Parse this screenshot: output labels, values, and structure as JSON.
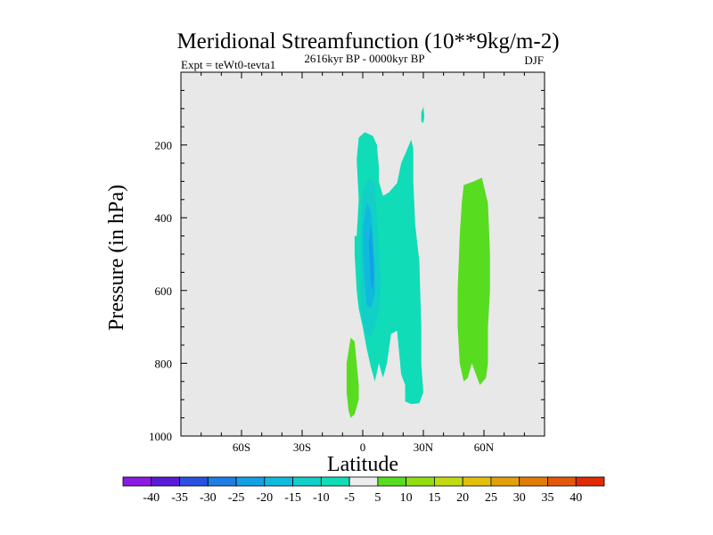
{
  "chart_data": {
    "type": "contour",
    "title": "Meridional Streamfunction (10**9kg/m-2)",
    "left_label": "Expt = teWt0-tevta1",
    "center_label": "2616kyr BP - 0000kyr BP",
    "right_label": "DJF",
    "xlabel": "Latitude",
    "ylabel": "Pressure (in hPa)",
    "xlim": [
      -90,
      90
    ],
    "ylim": [
      1000,
      0
    ],
    "x_ticks": [
      {
        "value": -60,
        "label": "60S"
      },
      {
        "value": -30,
        "label": "30S"
      },
      {
        "value": 0,
        "label": "0"
      },
      {
        "value": 30,
        "label": "30N"
      },
      {
        "value": 60,
        "label": "60N"
      }
    ],
    "y_ticks": [
      {
        "value": 200,
        "label": "200"
      },
      {
        "value": 400,
        "label": "400"
      },
      {
        "value": 600,
        "label": "600"
      },
      {
        "value": 800,
        "label": "800"
      },
      {
        "value": 1000,
        "label": "1000"
      }
    ],
    "colorbar": {
      "levels": [
        "-40",
        "-35",
        "-30",
        "-25",
        "-20",
        "-15",
        "-10",
        "-5",
        "5",
        "10",
        "15",
        "20",
        "25",
        "30",
        "35",
        "40"
      ],
      "colors": [
        "#8c1ae0",
        "#5a1ad8",
        "#2a52e0",
        "#1e7ee6",
        "#14a0e4",
        "#0fbade",
        "#12cfc8",
        "#10dcb8",
        "#ececec",
        "#58dc20",
        "#92dc14",
        "#c0dc10",
        "#e0c00c",
        "#e2a00a",
        "#e27c08",
        "#e25808",
        "#e02a02"
      ]
    },
    "regions": [
      {
        "name": "contour-region-tropics-neg5",
        "color": "#10dcb8",
        "points": [
          [
            -3,
            450
          ],
          [
            -2,
            350
          ],
          [
            -3,
            240
          ],
          [
            -2,
            180
          ],
          [
            1,
            165
          ],
          [
            5,
            175
          ],
          [
            7,
            200
          ],
          [
            8,
            260
          ],
          [
            8,
            300
          ],
          [
            10,
            340
          ],
          [
            13,
            330
          ],
          [
            17,
            305
          ],
          [
            19,
            250
          ],
          [
            21,
            225
          ],
          [
            24,
            185
          ],
          [
            25,
            210
          ],
          [
            25,
            300
          ],
          [
            26,
            420
          ],
          [
            28,
            520
          ],
          [
            29,
            700
          ],
          [
            29,
            800
          ],
          [
            30,
            880
          ],
          [
            28,
            910
          ],
          [
            24,
            912
          ],
          [
            21,
            905
          ],
          [
            21,
            860
          ],
          [
            19,
            830
          ],
          [
            17,
            710
          ],
          [
            14,
            720
          ],
          [
            12,
            800
          ],
          [
            10,
            840
          ],
          [
            8,
            800
          ],
          [
            6,
            850
          ],
          [
            4,
            810
          ],
          [
            2,
            760
          ],
          [
            0,
            700
          ],
          [
            -2,
            650
          ],
          [
            -3,
            600
          ],
          [
            -4,
            500
          ],
          [
            -4,
            450
          ]
        ]
      },
      {
        "name": "contour-region-tropics-neg10",
        "color": "#12cfc8",
        "points": [
          [
            -1,
            450
          ],
          [
            0,
            330
          ],
          [
            3,
            290
          ],
          [
            6,
            310
          ],
          [
            7,
            400
          ],
          [
            8,
            500
          ],
          [
            9,
            580
          ],
          [
            8,
            650
          ],
          [
            6,
            700
          ],
          [
            4,
            730
          ],
          [
            1,
            710
          ],
          [
            -1,
            640
          ],
          [
            -1,
            550
          ]
        ]
      },
      {
        "name": "contour-region-tropics-neg15",
        "color": "#0fbade",
        "points": [
          [
            0,
            430
          ],
          [
            2,
            360
          ],
          [
            4,
            380
          ],
          [
            5,
            450
          ],
          [
            6,
            540
          ],
          [
            6,
            610
          ],
          [
            4,
            650
          ],
          [
            2,
            640
          ],
          [
            1,
            580
          ],
          [
            0,
            500
          ]
        ]
      },
      {
        "name": "contour-region-tropics-neg20",
        "color": "#14a0e4",
        "points": [
          [
            3,
            470
          ],
          [
            4,
            420
          ],
          [
            5,
            480
          ],
          [
            5.5,
            560
          ],
          [
            5,
            600
          ],
          [
            4,
            580
          ],
          [
            3.5,
            520
          ]
        ]
      },
      {
        "name": "contour-region-upper-speck-neg5",
        "color": "#10dcb8",
        "points": [
          [
            29,
            110
          ],
          [
            30,
            95
          ],
          [
            30.5,
            120
          ],
          [
            30,
            140
          ],
          [
            29,
            135
          ]
        ]
      },
      {
        "name": "contour-region-south-pos5",
        "color": "#58dc20",
        "points": [
          [
            -8,
            800
          ],
          [
            -6,
            730
          ],
          [
            -4,
            740
          ],
          [
            -3,
            800
          ],
          [
            -2,
            860
          ],
          [
            -2,
            900
          ],
          [
            -4,
            940
          ],
          [
            -6,
            950
          ],
          [
            -7,
            930
          ],
          [
            -8,
            880
          ]
        ]
      },
      {
        "name": "contour-region-north-pos5",
        "color": "#58dc20",
        "points": [
          [
            48,
            450
          ],
          [
            49,
            360
          ],
          [
            50,
            310
          ],
          [
            55,
            300
          ],
          [
            59,
            290
          ],
          [
            62,
            360
          ],
          [
            63,
            500
          ],
          [
            63,
            600
          ],
          [
            62,
            700
          ],
          [
            62,
            800
          ],
          [
            61,
            840
          ],
          [
            58,
            860
          ],
          [
            56,
            830
          ],
          [
            54,
            800
          ],
          [
            52,
            840
          ],
          [
            50,
            850
          ],
          [
            48,
            800
          ],
          [
            47,
            700
          ],
          [
            47,
            600
          ]
        ]
      }
    ]
  }
}
